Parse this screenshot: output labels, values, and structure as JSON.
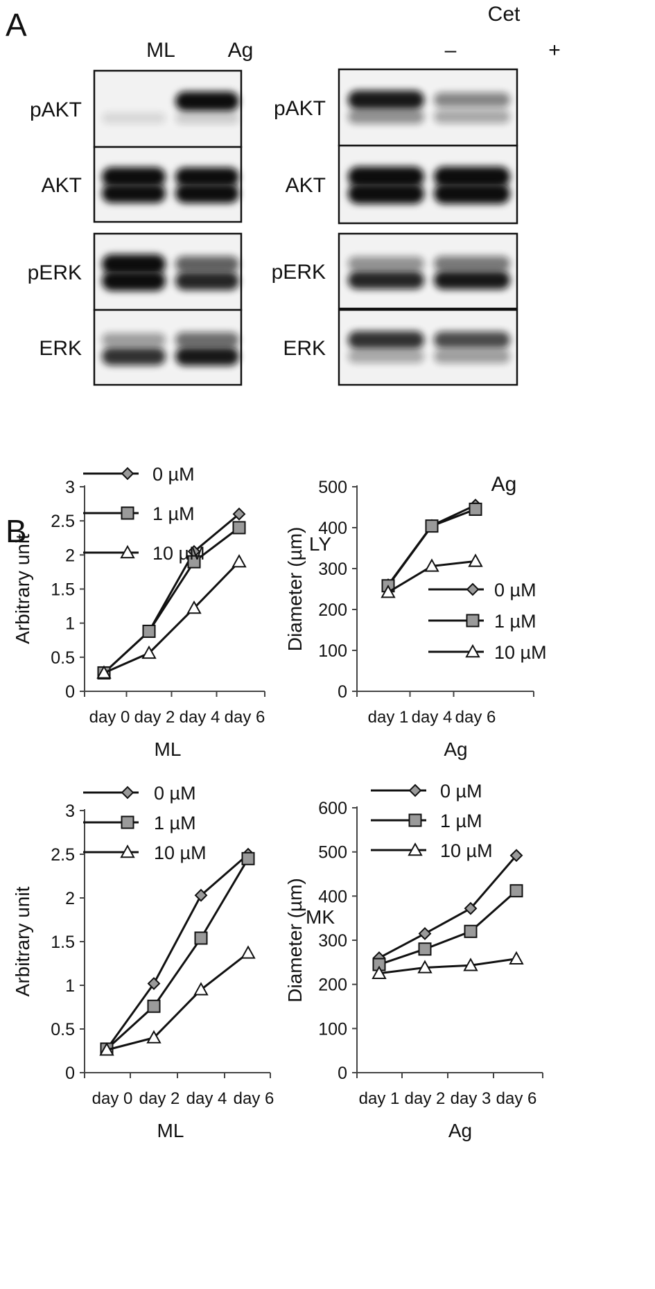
{
  "panel_a": {
    "letter": "A",
    "left_blot": {
      "lanes": [
        "ML",
        "Ag"
      ],
      "rows": [
        {
          "label": "pAKT",
          "bands": [
            [
              0.05,
              0.1
            ],
            [
              0.95,
              0.15
            ]
          ]
        },
        {
          "label": "AKT",
          "bands": [
            [
              1.0,
              0.95
            ],
            [
              0.95,
              1.0
            ]
          ]
        },
        {
          "label": "pERK",
          "bands": [
            [
              1.0,
              1.0
            ],
            [
              0.6,
              0.85
            ]
          ]
        },
        {
          "label": "ERK",
          "bands": [
            [
              0.35,
              0.8
            ],
            [
              0.55,
              0.9
            ]
          ]
        }
      ]
    },
    "right_blot": {
      "treatment_label": "Cet",
      "lanes": [
        "–",
        "+"
      ],
      "bottom_label": "Ag",
      "rows": [
        {
          "label": "pAKT",
          "bands": [
            [
              0.9,
              0.4
            ],
            [
              0.45,
              0.3
            ]
          ]
        },
        {
          "label": "AKT",
          "bands": [
            [
              1.0,
              1.0
            ],
            [
              1.0,
              1.0
            ]
          ]
        },
        {
          "label": "pERK",
          "bands": [
            [
              0.4,
              0.85
            ],
            [
              0.5,
              0.9
            ]
          ]
        },
        {
          "label": "ERK",
          "bands": [
            [
              0.8,
              0.3
            ],
            [
              0.7,
              0.35
            ]
          ]
        }
      ]
    }
  },
  "panel_b": {
    "letter": "B",
    "row_labels": [
      "LY",
      "MK"
    ]
  },
  "chart_data": [
    {
      "type": "line",
      "group": "LY",
      "categories": [
        "day 0",
        "day 2",
        "day 4",
        "day 6"
      ],
      "xlabel": "ML",
      "ylabel": "Arbitrary unit",
      "ylim": [
        0,
        3
      ],
      "yticks": [
        "0",
        "0.5",
        "1",
        "1.5",
        "2",
        "2.5",
        "3"
      ],
      "legend_position": "top-left",
      "series": [
        {
          "name": "0 µM",
          "marker": "diamond",
          "values": [
            0.27,
            0.88,
            2.05,
            2.6
          ]
        },
        {
          "name": "1 µM",
          "marker": "square",
          "values": [
            0.27,
            0.88,
            1.9,
            2.4
          ]
        },
        {
          "name": "10 µM",
          "marker": "triangle",
          "values": [
            0.27,
            0.56,
            1.22,
            1.9
          ]
        }
      ]
    },
    {
      "type": "line",
      "group": "LY",
      "categories": [
        "day 1",
        "day 4",
        "day 6"
      ],
      "xlabel": "Ag",
      "ylabel": "Diameter (µm)",
      "ylim": [
        0,
        500
      ],
      "yticks": [
        "0",
        "100",
        "200",
        "300",
        "400",
        "500"
      ],
      "legend_position": "bottom-right",
      "series": [
        {
          "name": "0 µM",
          "marker": "diamond",
          "values": [
            260,
            405,
            455
          ]
        },
        {
          "name": "1 µM",
          "marker": "square",
          "values": [
            258,
            404,
            445
          ]
        },
        {
          "name": "10 µM",
          "marker": "triangle",
          "values": [
            242,
            306,
            318
          ]
        }
      ]
    },
    {
      "type": "line",
      "group": "MK",
      "categories": [
        "day 0",
        "day 2",
        "day 4",
        "day 6"
      ],
      "xlabel": "ML",
      "ylabel": "Arbitrary unit",
      "ylim": [
        0,
        3
      ],
      "yticks": [
        "0",
        "0.5",
        "1",
        "1.5",
        "2",
        "2.5",
        "3"
      ],
      "legend_position": "top-left",
      "series": [
        {
          "name": "0 µM",
          "marker": "diamond",
          "values": [
            0.27,
            1.02,
            2.03,
            2.5
          ]
        },
        {
          "name": "1 µM",
          "marker": "square",
          "values": [
            0.27,
            0.76,
            1.54,
            2.45
          ]
        },
        {
          "name": "10 µM",
          "marker": "triangle",
          "values": [
            0.26,
            0.4,
            0.95,
            1.37
          ]
        }
      ]
    },
    {
      "type": "line",
      "group": "MK",
      "categories": [
        "day 1",
        "day 2",
        "day 3",
        "day 6"
      ],
      "xlabel": "Ag",
      "ylabel": "Diameter (µm)",
      "ylim": [
        0,
        600
      ],
      "yticks": [
        "0",
        "100",
        "200",
        "300",
        "400",
        "500",
        "600"
      ],
      "legend_position": "top-left",
      "series": [
        {
          "name": "0 µM",
          "marker": "diamond",
          "values": [
            260,
            315,
            372,
            492
          ]
        },
        {
          "name": "1 µM",
          "marker": "square",
          "values": [
            245,
            280,
            320,
            412
          ]
        },
        {
          "name": "10 µM",
          "marker": "triangle",
          "values": [
            225,
            238,
            243,
            258
          ]
        }
      ]
    }
  ],
  "colors": {
    "line": "#111111",
    "marker_fill": "#9a9a9a",
    "marker_open": "#ffffff",
    "blot_bg": "#f2f2f2",
    "band": "#111111"
  }
}
